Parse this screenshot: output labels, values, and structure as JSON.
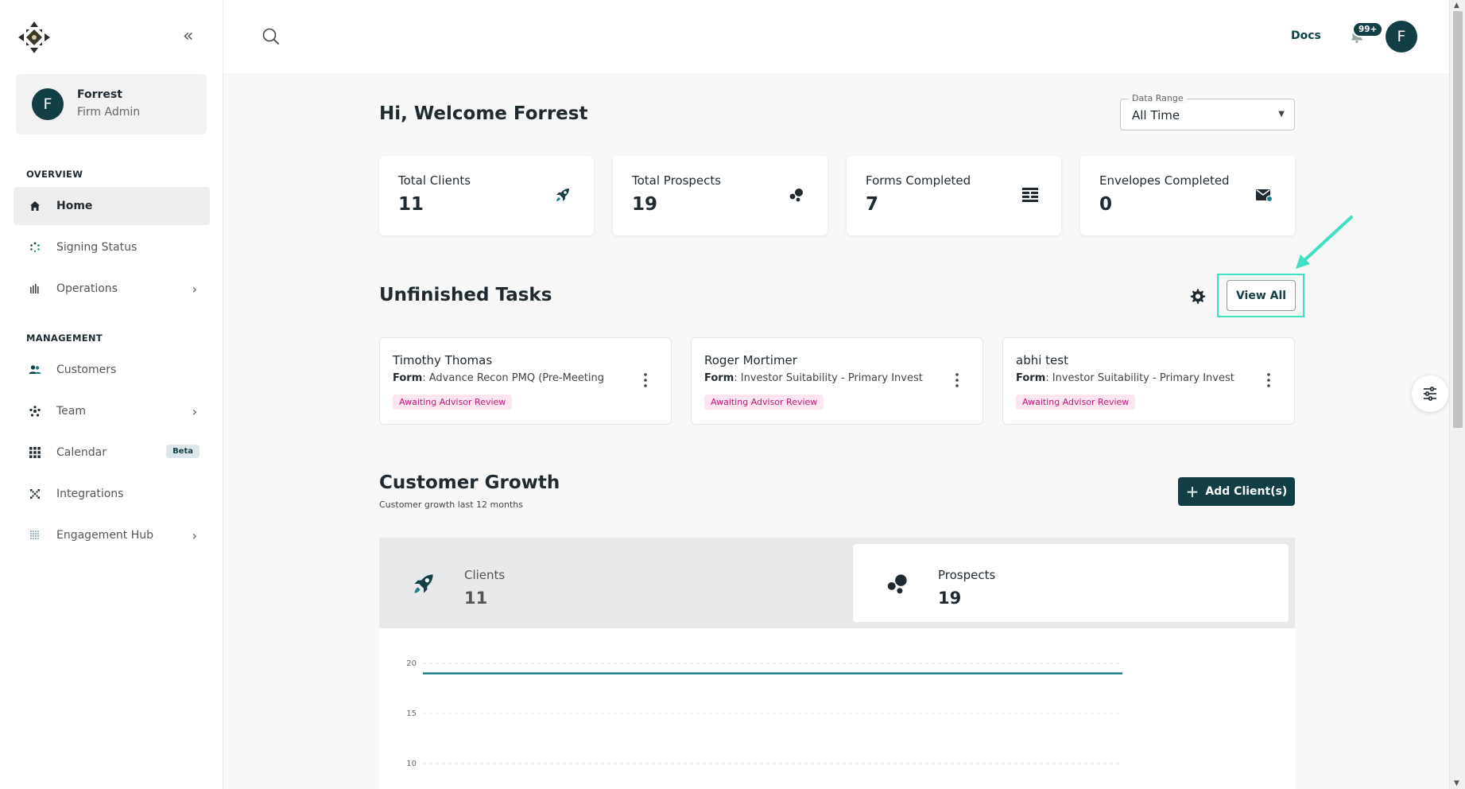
{
  "sidebar": {
    "user": {
      "initial": "F",
      "name": "Forrest",
      "role": "Firm Admin"
    },
    "overview_label": "OVERVIEW",
    "overview_items": [
      {
        "label": "Home",
        "icon": "home-icon",
        "active": true
      },
      {
        "label": "Signing Status",
        "icon": "signing-status-icon"
      },
      {
        "label": "Operations",
        "icon": "operations-icon",
        "chevron": true
      }
    ],
    "management_label": "MANAGEMENT",
    "management_items": [
      {
        "label": "Customers",
        "icon": "customers-icon"
      },
      {
        "label": "Team",
        "icon": "team-icon",
        "chevron": true
      },
      {
        "label": "Calendar",
        "icon": "calendar-icon",
        "badge": "Beta"
      },
      {
        "label": "Integrations",
        "icon": "integrations-icon"
      },
      {
        "label": "Engagement Hub",
        "icon": "engagement-hub-icon",
        "chevron": true
      }
    ]
  },
  "topbar": {
    "docs_label": "Docs",
    "notification_count": "99+",
    "avatar_initial": "F"
  },
  "main": {
    "welcome": "Hi, Welcome Forrest",
    "date_range": {
      "label": "Data Range",
      "value": "All Time"
    },
    "stats": [
      {
        "title": "Total Clients",
        "value": "11",
        "icon": "rocket-icon"
      },
      {
        "title": "Total Prospects",
        "value": "19",
        "icon": "prospects-icon"
      },
      {
        "title": "Forms Completed",
        "value": "7",
        "icon": "forms-icon"
      },
      {
        "title": "Envelopes Completed",
        "value": "0",
        "icon": "envelope-icon"
      }
    ],
    "unfinished_tasks": {
      "title": "Unfinished Tasks",
      "view_all_label": "View All",
      "tasks": [
        {
          "name": "Timothy Thomas",
          "form_label": "Form",
          "form": ": Advance Recon PMQ (Pre-Meeting",
          "status": "Awaiting Advisor Review"
        },
        {
          "name": "Roger Mortimer",
          "form_label": "Form",
          "form": ": Investor Suitability - Primary Invest",
          "status": "Awaiting Advisor Review"
        },
        {
          "name": "abhi test",
          "form_label": "Form",
          "form": ": Investor Suitability - Primary Invest",
          "status": "Awaiting Advisor Review"
        }
      ]
    },
    "customer_growth": {
      "title": "Customer Growth",
      "subtitle": "Customer growth last 12 months",
      "add_button_label": "Add Client(s)",
      "tabs": [
        {
          "label": "Clients",
          "value": "11",
          "icon": "rocket-icon",
          "selected": false
        },
        {
          "label": "Prospects",
          "value": "19",
          "icon": "prospects-icon",
          "selected": true
        }
      ]
    }
  },
  "colors": {
    "brand": "#123f44",
    "accent": "#1a7f86",
    "highlight": "#3fe0c3",
    "status_pink": "#c2187a"
  },
  "chart_data": {
    "type": "line",
    "series": [
      {
        "values": [
          19,
          19,
          19,
          19,
          19,
          19,
          19,
          19,
          19,
          19,
          19,
          19
        ]
      }
    ],
    "y_ticks": [
      "20",
      "15",
      "10"
    ],
    "ylim": [
      10,
      20
    ],
    "grid": true
  }
}
